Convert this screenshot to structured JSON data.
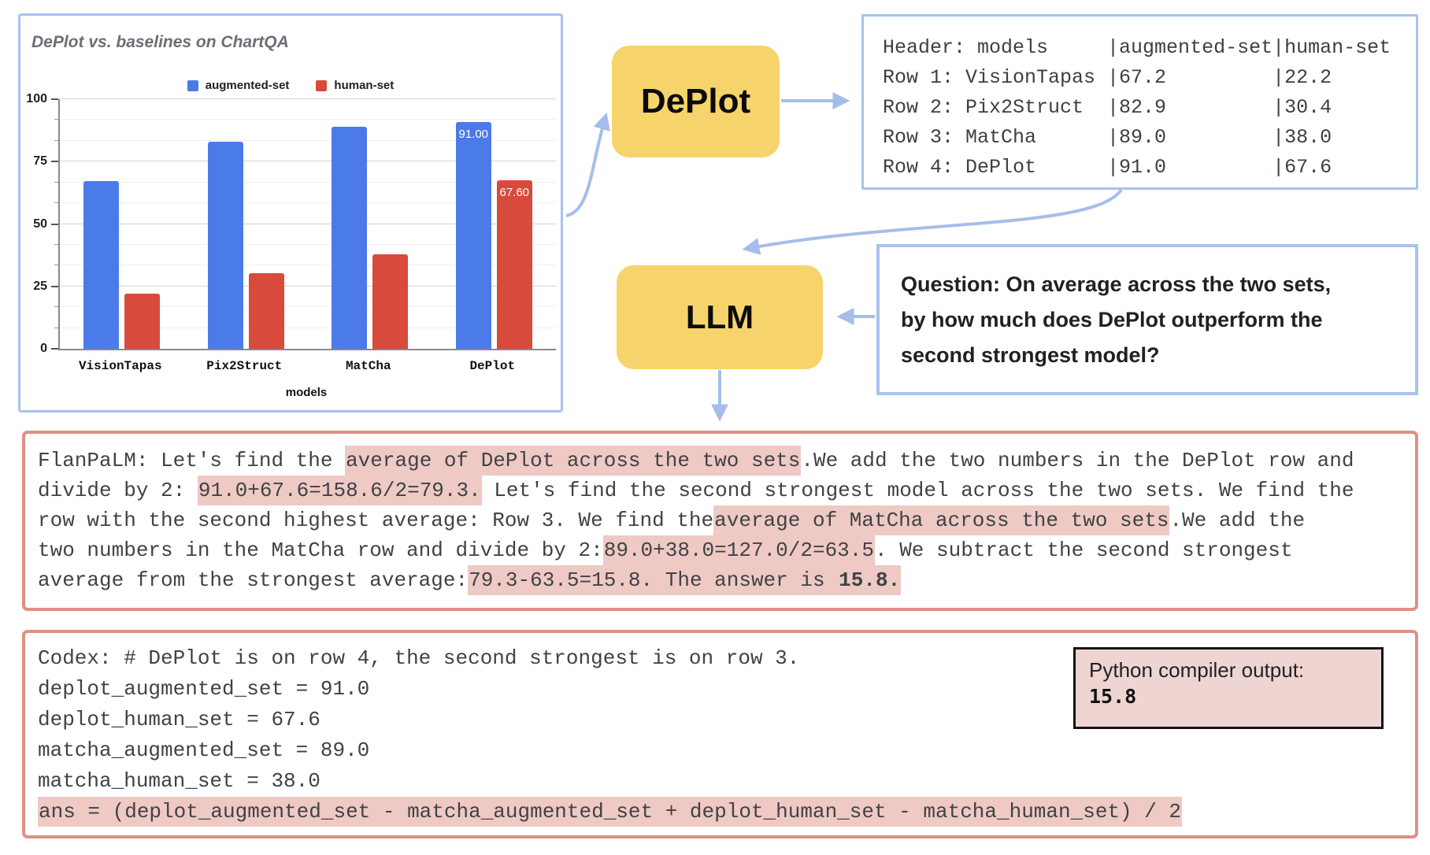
{
  "chart_data": {
    "type": "bar",
    "title": "DePlot vs. baselines on ChartQA",
    "xlabel": "models",
    "ylabel": "",
    "ylim": [
      0,
      100
    ],
    "yticks": [
      0,
      25,
      50,
      75,
      100
    ],
    "grid": true,
    "legend_position": "top",
    "categories": [
      "VisionTapas",
      "Pix2Struct",
      "MatCha",
      "DePlot"
    ],
    "series": [
      {
        "name": "augmented-set",
        "color": "#4b7be8",
        "values": [
          67.2,
          82.9,
          89.0,
          91.0
        ],
        "point_labels": [
          "",
          "",
          "",
          "91.00"
        ]
      },
      {
        "name": "human-set",
        "color": "#d84a3c",
        "values": [
          22.2,
          30.4,
          38.0,
          67.6
        ],
        "point_labels": [
          "",
          "",
          "",
          "67.60"
        ]
      }
    ]
  },
  "pipeline": {
    "deplot_label": "DePlot",
    "llm_label": "LLM"
  },
  "table_output": {
    "lines": [
      "Header: models     |augmented-set|human-set",
      "Row 1: VisionTapas |67.2         |22.2",
      "Row 2: Pix2Struct  |82.9         |30.4",
      "Row 3: MatCha      |89.0         |38.0",
      "Row 4: DePlot      |91.0         |67.6"
    ]
  },
  "question": {
    "lines": [
      "Question: On average across the two sets,",
      "by how much does DePlot outperform the",
      "second strongest model?"
    ]
  },
  "flanpalm": {
    "lines": [
      [
        {
          "t": "FlanPaLM: Let's find the "
        },
        {
          "t": "average of DePlot across the two sets",
          "hl": true
        },
        {
          "t": ".We add the two numbers in the DePlot row and"
        }
      ],
      [
        {
          "t": "divide by 2: "
        },
        {
          "t": "91.0+67.6=158.6/2=79.3.",
          "hl": true
        },
        {
          "t": " Let's find the second strongest model across the two sets. We find the"
        }
      ],
      [
        {
          "t": "row with the second highest average: Row 3. We find the"
        },
        {
          "t": "average of MatCha across the two sets",
          "hl": true
        },
        {
          "t": ".We add the"
        }
      ],
      [
        {
          "t": "two numbers in the MatCha row and divide by 2:"
        },
        {
          "t": "89.0+38.0=127.0/2=63.5",
          "hl": true
        },
        {
          "t": ". We subtract the second strongest"
        }
      ],
      [
        {
          "t": "average from the strongest average:"
        },
        {
          "t": "79.3-63.5=15.8. The answer is ",
          "hl": true
        },
        {
          "t": "15.8.",
          "hl": true,
          "b": true
        }
      ]
    ]
  },
  "codex": {
    "lines": [
      {
        "text": "Codex: # DePlot is on row 4, the second strongest is on row 3.",
        "hl": false
      },
      {
        "text": "deplot_augmented_set = 91.0",
        "hl": false
      },
      {
        "text": "deplot_human_set = 67.6",
        "hl": false
      },
      {
        "text": "matcha_augmented_set = 89.0",
        "hl": false
      },
      {
        "text": "matcha_human_set = 38.0",
        "hl": false
      },
      {
        "text": "ans = (deplot_augmented_set - matcha_augmented_set + deplot_human_set - matcha_human_set) / 2",
        "hl": true
      }
    ]
  },
  "python_output": {
    "label": "Python compiler output:",
    "value": "15.8"
  },
  "colors": {
    "arrow_blue": "#a6bdec",
    "panel_border_blue": "#a9c2ee",
    "node_yellow": "#f6d46b",
    "highlight_pink": "#efc9c4",
    "answer_border_red": "#df8f85",
    "bar_blue": "#4b7be8",
    "bar_red": "#d84a3c"
  }
}
